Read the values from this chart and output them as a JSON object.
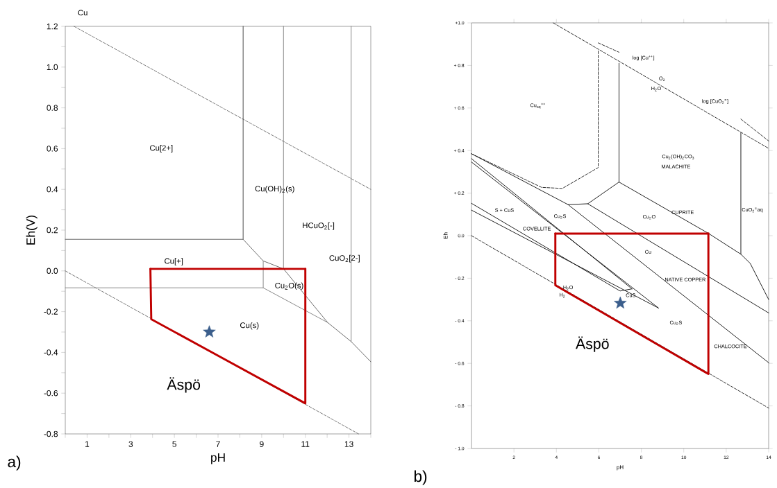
{
  "chart_data": [
    {
      "type": "line",
      "title": "Cu",
      "xlabel": "pH",
      "ylabel": "Eh(V)",
      "xlim": [
        0,
        14
      ],
      "ylim": [
        -0.8,
        1.2
      ],
      "marker": "none",
      "xticks": [
        {
          "value": 0,
          "label": null
        },
        1,
        {
          "value": 2,
          "label": null
        },
        3,
        {
          "value": 4,
          "label": null
        },
        5,
        {
          "value": 6,
          "label": null
        },
        7,
        {
          "value": 8,
          "label": null
        },
        9,
        {
          "value": 10,
          "label": null
        },
        11,
        {
          "value": 12,
          "label": null
        },
        13,
        {
          "value": 14,
          "label": null
        }
      ],
      "yticks": [
        {
          "value": -0.8,
          "label": "-0.8"
        },
        {
          "value": -0.7,
          "label": null
        },
        {
          "value": -0.6,
          "label": "-0.6"
        },
        {
          "value": -0.5,
          "label": null
        },
        {
          "value": -0.4,
          "label": "-0.4"
        },
        {
          "value": -0.3,
          "label": null
        },
        {
          "value": -0.2,
          "label": "-0.2"
        },
        {
          "value": -0.1,
          "label": null
        },
        {
          "value": 0,
          "label": "0.0"
        },
        {
          "value": 0.1,
          "label": null
        },
        {
          "value": 0.2,
          "label": "0.2"
        },
        {
          "value": 0.3,
          "label": null
        },
        {
          "value": 0.4,
          "label": "0.4"
        },
        {
          "value": 0.5,
          "label": null
        },
        {
          "value": 0.6,
          "label": "0.6"
        },
        {
          "value": 0.7,
          "label": null
        },
        {
          "value": 0.8,
          "label": "0.8"
        },
        {
          "value": 0.9,
          "label": null
        },
        {
          "value": 1.0,
          "label": "1.0"
        },
        {
          "value": 1.1,
          "label": null
        },
        {
          "value": 1.2,
          "label": "1.2"
        }
      ],
      "series": [
        {
          "color": "#707070",
          "line_style": "dashed",
          "x": [
            0.4,
            14
          ],
          "values": [
            1.2,
            0.4
          ]
        },
        {
          "color": "#707070",
          "line_style": "dashed",
          "x": [
            0,
            13.44
          ],
          "values": [
            0,
            -0.8
          ]
        },
        {
          "color": "#404040",
          "x": [
            8.15,
            8.15
          ],
          "values": [
            1.2,
            0.155
          ]
        },
        {
          "color": "#606060",
          "x": [
            0,
            8.15,
            9.07,
            10.0,
            12.02,
            13.1,
            14
          ],
          "values": [
            0.155,
            0.155,
            0.049,
            0.01,
            -0.253,
            -0.347,
            -0.446
          ]
        },
        {
          "color": "#808080",
          "x": [
            10.0,
            10.0
          ],
          "values": [
            1.2,
            0.01
          ]
        },
        {
          "color": "#808080",
          "x": [
            13.1,
            13.1
          ],
          "values": [
            1.2,
            -0.347
          ]
        },
        {
          "color": "#808080",
          "x": [
            9.07,
            9.07
          ],
          "values": [
            0.049,
            -0.083
          ]
        },
        {
          "color": "#808080",
          "x": [
            0,
            9.07,
            12.02
          ],
          "values": [
            -0.083,
            -0.083,
            -0.253
          ]
        },
        {
          "color": "#c00000",
          "x": [
            3.9,
            3.94,
            11.0,
            11.0
          ],
          "values": [
            0.01,
            -0.237,
            -0.65,
            0.01
          ]
        },
        {
          "color": "#c00000",
          "x": [
            3.9,
            11.0
          ],
          "values": [
            0.01,
            0.01
          ]
        },
        {
          "type": "scatter",
          "marker": "star",
          "color": "#3b5e8c",
          "x": [
            6.6
          ],
          "values": [
            -0.3
          ]
        }
      ],
      "annotations": [
        "Cu[2+]",
        "Cu(OH)$_{2}$(s)",
        "HCuO$_{2}$[-]",
        "CuO$_{2}$[2-]",
        "Cu[+]",
        "Cu$_{2}$O(s)",
        "Cu(s)",
        "Äspö",
        "a)"
      ]
    },
    {
      "type": "line",
      "xlabel": "pH",
      "ylabel": "Eh",
      "xlim": [
        0,
        14
      ],
      "ylim": [
        -1.0,
        1.0
      ],
      "marker": "none",
      "xticks": [
        2,
        4,
        6,
        8,
        10,
        12,
        14
      ],
      "yticks": [
        {
          "value": -1.0,
          "label": "- 1.0"
        },
        {
          "value": -0.8,
          "label": "- 0.8"
        },
        {
          "value": -0.6,
          "label": "- 0.6"
        },
        {
          "value": -0.4,
          "label": "- 0.4"
        },
        {
          "value": -0.2,
          "label": "- 0.2"
        },
        {
          "value": 0,
          "label": "0.0"
        },
        {
          "value": 0.2,
          "label": "+ 0.2"
        },
        {
          "value": 0.4,
          "label": "+ 0.4"
        },
        {
          "value": 0.6,
          "label": "+ 0.6"
        },
        {
          "value": 0.8,
          "label": "+ 0.8"
        },
        {
          "value": 1.0,
          "label": "+1.0"
        }
      ],
      "series": [
        {
          "color": "#202020",
          "line_style": "dashed",
          "x": [
            3.85,
            14
          ],
          "values": [
            1.0,
            0.41
          ]
        },
        {
          "color": "#202020",
          "line_style": "dashed",
          "x": [
            5.97,
            6.95
          ],
          "values": [
            0.906,
            0.862
          ]
        },
        {
          "color": "#202020",
          "line_style": "dashed",
          "x": [
            12.69,
            14
          ],
          "values": [
            0.548,
            0.445
          ]
        },
        {
          "color": "#202020",
          "line_style": "dashed",
          "x": [
            0,
            3.3,
            4.28,
            5.97,
            5.97
          ],
          "values": [
            0.385,
            0.227,
            0.222,
            0.32,
            0.873
          ]
        },
        {
          "color": "#101010",
          "x": [
            6.95,
            6.95
          ],
          "values": [
            0.81,
            0.252
          ]
        },
        {
          "color": "#101010",
          "x": [
            4.55,
            5.48,
            6.95
          ],
          "values": [
            0.146,
            0.15,
            0.252
          ]
        },
        {
          "color": "#101010",
          "x": [
            6.95,
            11.16,
            12.69,
            13.13,
            14
          ],
          "values": [
            0.252,
            0.011,
            -0.087,
            -0.13,
            -0.3
          ]
        },
        {
          "color": "#101010",
          "x": [
            12.69,
            12.69
          ],
          "values": [
            0.483,
            -0.087
          ]
        },
        {
          "color": "#101010",
          "x": [
            5.48,
            14
          ],
          "values": [
            0.15,
            -0.363
          ]
        },
        {
          "color": "#101010",
          "x": [
            0,
            4.55,
            14
          ],
          "values": [
            0.385,
            0.146,
            -0.597
          ]
        },
        {
          "color": "#101010",
          "x": [
            0,
            7.56
          ],
          "values": [
            0.362,
            -0.25
          ]
        },
        {
          "color": "#101010",
          "x": [
            0,
            8.81
          ],
          "values": [
            0.346,
            -0.34
          ]
        },
        {
          "color": "#101010",
          "x": [
            0,
            7.0,
            7.56
          ],
          "values": [
            0.152,
            -0.26,
            -0.25
          ]
        },
        {
          "color": "#101010",
          "x": [
            0,
            8.81
          ],
          "values": [
            0.12,
            -0.34
          ]
        },
        {
          "color": "#202020",
          "line_style": "dashed",
          "x": [
            0,
            14
          ],
          "values": [
            0,
            -0.81
          ]
        },
        {
          "color": "#c00000",
          "x": [
            3.95,
            3.95,
            11.16,
            11.16
          ],
          "values": [
            0.01,
            -0.233,
            -0.65,
            0.01
          ]
        },
        {
          "color": "#c00000",
          "x": [
            3.95,
            11.16
          ],
          "values": [
            0.01,
            0.01
          ]
        },
        {
          "type": "scatter",
          "marker": "star",
          "color": "#3b5e8c",
          "x": [
            7.01
          ],
          "values": [
            -0.317
          ]
        }
      ],
      "annotations": [
        "Cu$_{aq}$$^{++}$",
        "log [Cu$^{++}$]",
        "O$_{2}$",
        "H$_{2}$O",
        "log [CuO$_{2}$$^{=}$]",
        "Cu$_{2}$(OH)$_{2}$CO$_{3}$",
        "MALACHITE",
        "CuO$_{2}$$^{=}$aq",
        "S + CuS",
        "COVELLITE",
        "Cu$_{2}$S",
        "Cu$_{2}$O",
        "CUPRITE",
        "Cu",
        "NATIVE COPPER",
        "H$_{2}$O",
        "H$_{2}$",
        "CuS",
        "Cu$_{2}$S",
        "CHALCOCITE",
        "Äspö",
        "b)"
      ]
    }
  ]
}
